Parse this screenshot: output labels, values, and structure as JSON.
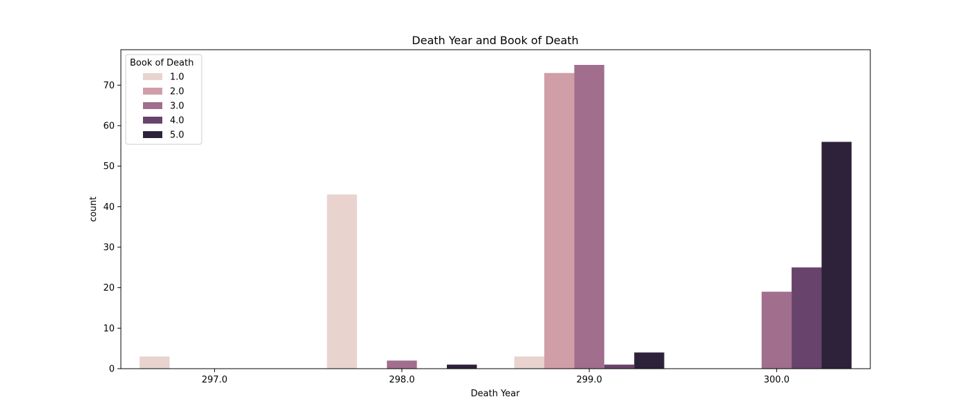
{
  "chart_data": {
    "type": "bar",
    "title": "Death Year and Book of Death",
    "xlabel": "Death Year",
    "ylabel": "count",
    "categories": [
      "297.0",
      "298.0",
      "299.0",
      "300.0"
    ],
    "yticks": [
      0,
      10,
      20,
      30,
      40,
      50,
      60,
      70
    ],
    "ylim": [
      0,
      78.75
    ],
    "legend": {
      "title": "Book of Death",
      "placement": "top-left"
    },
    "series": [
      {
        "name": "1.0",
        "color": "#e8d3ce",
        "values": [
          3,
          43,
          3,
          0
        ]
      },
      {
        "name": "2.0",
        "color": "#cf9ea7",
        "values": [
          0,
          0,
          73,
          0
        ]
      },
      {
        "name": "3.0",
        "color": "#a16e8d",
        "values": [
          0,
          2,
          75,
          19
        ]
      },
      {
        "name": "4.0",
        "color": "#68436b",
        "values": [
          0,
          0,
          1,
          25
        ]
      },
      {
        "name": "5.0",
        "color": "#2e213a",
        "values": [
          0,
          1,
          4,
          56
        ]
      }
    ],
    "grid": false
  }
}
